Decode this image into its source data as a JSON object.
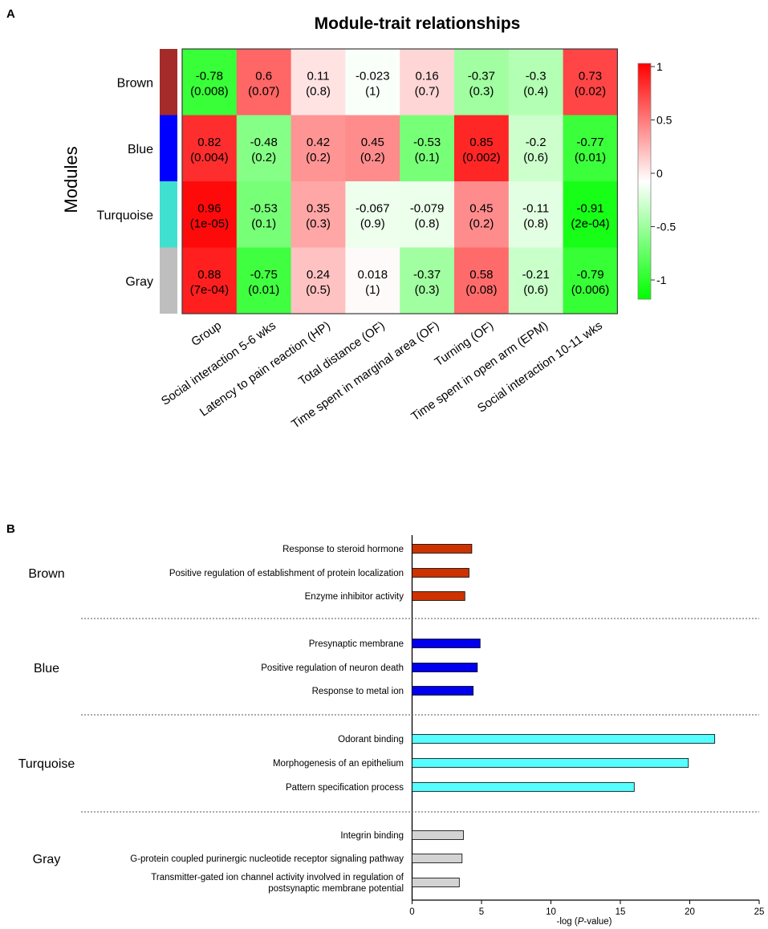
{
  "panel_a_label": "A",
  "panel_b_label": "B",
  "chart_data": [
    {
      "type": "heatmap",
      "title": "Module-trait relationships",
      "ylabel": "Modules",
      "rows": [
        {
          "name": "Brown",
          "color": "#a52a2a"
        },
        {
          "name": "Blue",
          "color": "#0000ff"
        },
        {
          "name": "Turquoise",
          "color": "#40e0d0"
        },
        {
          "name": "Gray",
          "color": "#bebebe"
        }
      ],
      "columns": [
        "Group",
        "Social interaction 5-6 wks",
        "Latency to pain reaction (HP)",
        "Total distance (OF)",
        "Time spent in marginal area (OF)",
        "Turning (OF)",
        "Time spent in open arm (EPM)",
        "Social interaction 10-11 wks"
      ],
      "values": [
        [
          -0.78,
          0.6,
          0.11,
          -0.023,
          0.16,
          -0.37,
          -0.3,
          0.73
        ],
        [
          0.82,
          -0.48,
          0.42,
          0.45,
          -0.53,
          0.85,
          -0.2,
          -0.77
        ],
        [
          0.96,
          -0.53,
          0.35,
          -0.067,
          -0.079,
          0.45,
          -0.11,
          -0.91
        ],
        [
          0.88,
          -0.75,
          0.24,
          0.018,
          -0.37,
          0.58,
          -0.21,
          -0.79
        ]
      ],
      "value_labels": [
        [
          "-0.78",
          "0.6",
          "0.11",
          "-0.023",
          "0.16",
          "-0.37",
          "-0.3",
          "0.73"
        ],
        [
          "0.82",
          "-0.48",
          "0.42",
          "0.45",
          "-0.53",
          "0.85",
          "-0.2",
          "-0.77"
        ],
        [
          "0.96",
          "-0.53",
          "0.35",
          "-0.067",
          "-0.079",
          "0.45",
          "-0.11",
          "-0.91"
        ],
        [
          "0.88",
          "-0.75",
          "0.24",
          "0.018",
          "-0.37",
          "0.58",
          "-0.21",
          "-0.79"
        ]
      ],
      "pvalue_labels": [
        [
          "(0.008)",
          "(0.07)",
          "(0.8)",
          "(1)",
          "(0.7)",
          "(0.3)",
          "(0.4)",
          "(0.02)"
        ],
        [
          "(0.004)",
          "(0.2)",
          "(0.2)",
          "(0.2)",
          "(0.1)",
          "(0.002)",
          "(0.6)",
          "(0.01)"
        ],
        [
          "(1e-05)",
          "(0.1)",
          "(0.3)",
          "(0.9)",
          "(0.8)",
          "(0.2)",
          "(0.8)",
          "(2e-04)"
        ],
        [
          "(7e-04)",
          "(0.01)",
          "(0.5)",
          "(1)",
          "(0.3)",
          "(0.08)",
          "(0.6)",
          "(0.006)"
        ]
      ],
      "colorbar": {
        "range": [
          -1,
          1
        ],
        "ticks": [
          1,
          0.5,
          0,
          -0.5,
          -1
        ],
        "tick_labels": [
          "1",
          "0.5",
          "0",
          "-0.5",
          "-1"
        ],
        "low_color": "#00ff00",
        "mid_color": "#ffffff",
        "high_color": "#ff0000"
      }
    },
    {
      "type": "bar",
      "orientation": "horizontal",
      "xlabel_prefix": "-log (",
      "xlabel_italic": "P",
      "xlabel_suffix": "-value)",
      "xlim": [
        0,
        25
      ],
      "xticks": [
        0,
        5,
        10,
        15,
        20,
        25
      ],
      "groups": [
        {
          "name": "Brown",
          "color": "#cc3300",
          "terms": [
            {
              "label": "Response to steroid hormone",
              "value": 4.3
            },
            {
              "label": "Positive regulation of establishment of protein localization",
              "value": 4.1
            },
            {
              "label": "Enzyme inhibitor activity",
              "value": 3.8
            }
          ]
        },
        {
          "name": "Blue",
          "color": "#0000ee",
          "terms": [
            {
              "label": "Presynaptic membrane",
              "value": 4.9
            },
            {
              "label": "Positive regulation of neuron death",
              "value": 4.7
            },
            {
              "label": "Response to metal ion",
              "value": 4.4
            }
          ]
        },
        {
          "name": "Turquoise",
          "color": "#55ffff",
          "terms": [
            {
              "label": "Odorant binding",
              "value": 21.8
            },
            {
              "label": "Morphogenesis of an epithelium",
              "value": 19.9
            },
            {
              "label": "Pattern specification process",
              "value": 16.0
            }
          ]
        },
        {
          "name": "Gray",
          "color": "#d3d3d3",
          "terms": [
            {
              "label": "Integrin binding",
              "value": 3.7
            },
            {
              "label": "G-protein coupled purinergic nucleotide receptor signaling pathway",
              "value": 3.6
            },
            {
              "label": "Transmitter-gated ion channel activity involved in regulation of postsynaptic membrane potential",
              "label_lines": [
                "Transmitter-gated ion channel activity involved in regulation of",
                "postsynaptic membrane potential"
              ],
              "value": 3.4
            }
          ]
        }
      ]
    }
  ]
}
